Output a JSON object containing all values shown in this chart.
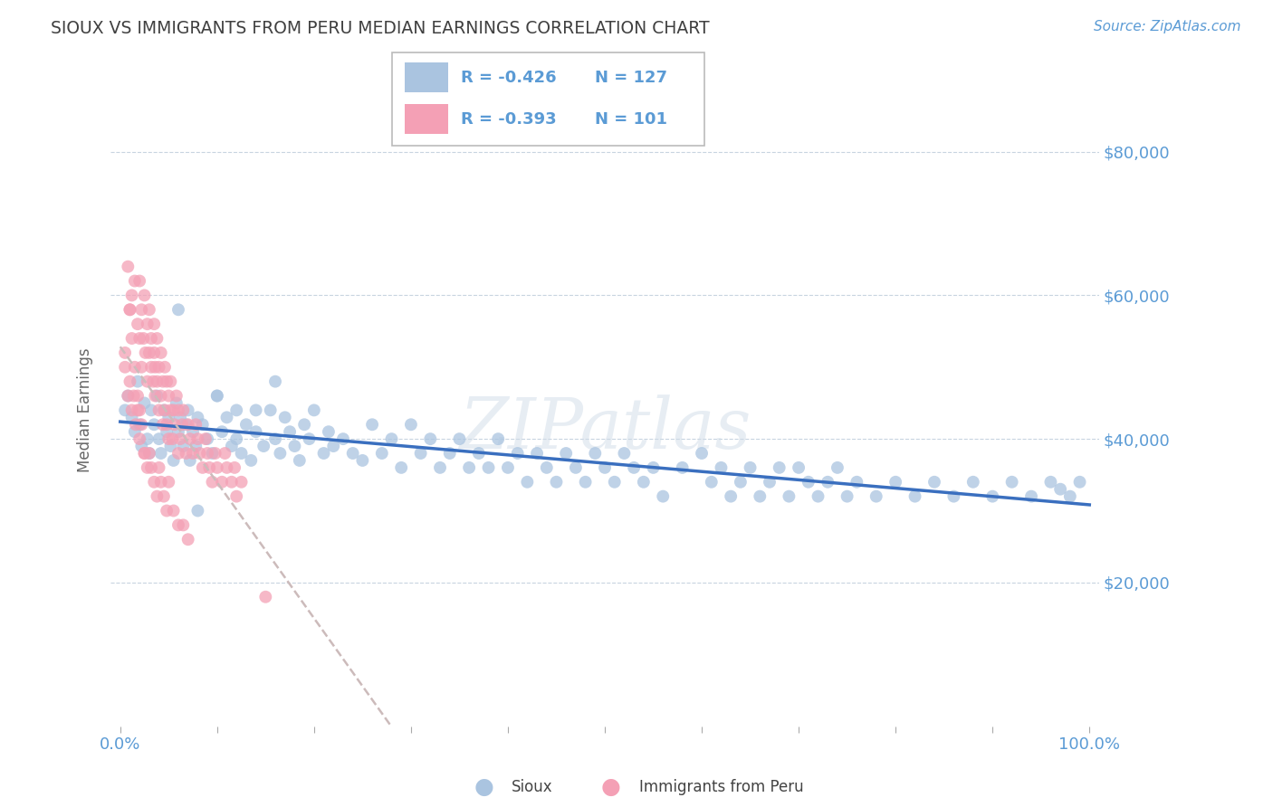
{
  "title": "SIOUX VS IMMIGRANTS FROM PERU MEDIAN EARNINGS CORRELATION CHART",
  "source_text": "Source: ZipAtlas.com",
  "ylabel": "Median Earnings",
  "xlim": [
    -0.01,
    1.01
  ],
  "ylim": [
    0,
    88000
  ],
  "yticks": [
    20000,
    40000,
    60000,
    80000
  ],
  "ytick_labels": [
    "$20,000",
    "$40,000",
    "$60,000",
    "$80,000"
  ],
  "xtick_labels": [
    "0.0%",
    "",
    "",
    "",
    "",
    "",
    "",
    "",
    "",
    "",
    "100.0%"
  ],
  "sioux_color": "#aac4e0",
  "peru_color": "#f4a0b5",
  "trendline_sioux_color": "#3a6fbf",
  "trendline_peru_color": "#ccbbbb",
  "legend_R_sioux": "-0.426",
  "legend_N_sioux": "127",
  "legend_R_peru": "-0.393",
  "legend_N_peru": "101",
  "title_color": "#404040",
  "axis_color": "#5b9bd5",
  "watermark": "ZIPatlas",
  "sioux_x": [
    0.005,
    0.008,
    0.012,
    0.015,
    0.018,
    0.02,
    0.022,
    0.025,
    0.028,
    0.03,
    0.032,
    0.035,
    0.038,
    0.04,
    0.042,
    0.045,
    0.048,
    0.05,
    0.052,
    0.055,
    0.058,
    0.06,
    0.062,
    0.065,
    0.068,
    0.07,
    0.072,
    0.075,
    0.078,
    0.08,
    0.085,
    0.09,
    0.095,
    0.1,
    0.105,
    0.11,
    0.115,
    0.12,
    0.125,
    0.13,
    0.135,
    0.14,
    0.148,
    0.155,
    0.16,
    0.165,
    0.17,
    0.175,
    0.18,
    0.185,
    0.19,
    0.195,
    0.2,
    0.21,
    0.215,
    0.22,
    0.23,
    0.24,
    0.25,
    0.26,
    0.27,
    0.28,
    0.29,
    0.3,
    0.31,
    0.32,
    0.33,
    0.34,
    0.35,
    0.36,
    0.37,
    0.38,
    0.39,
    0.4,
    0.41,
    0.42,
    0.43,
    0.44,
    0.45,
    0.46,
    0.47,
    0.48,
    0.49,
    0.5,
    0.51,
    0.52,
    0.53,
    0.54,
    0.55,
    0.56,
    0.58,
    0.6,
    0.61,
    0.62,
    0.63,
    0.64,
    0.65,
    0.66,
    0.67,
    0.68,
    0.69,
    0.7,
    0.71,
    0.72,
    0.73,
    0.74,
    0.75,
    0.76,
    0.78,
    0.8,
    0.82,
    0.84,
    0.86,
    0.88,
    0.9,
    0.92,
    0.94,
    0.96,
    0.97,
    0.98,
    0.99,
    0.06,
    0.08,
    0.1,
    0.12,
    0.14,
    0.16
  ],
  "sioux_y": [
    44000,
    46000,
    43000,
    41000,
    48000,
    42000,
    39000,
    45000,
    40000,
    38000,
    44000,
    42000,
    46000,
    40000,
    38000,
    44000,
    41000,
    43000,
    39000,
    37000,
    45000,
    41000,
    43000,
    39000,
    42000,
    44000,
    37000,
    41000,
    39000,
    43000,
    42000,
    40000,
    38000,
    46000,
    41000,
    43000,
    39000,
    40000,
    38000,
    42000,
    37000,
    41000,
    39000,
    44000,
    40000,
    38000,
    43000,
    41000,
    39000,
    37000,
    42000,
    40000,
    44000,
    38000,
    41000,
    39000,
    40000,
    38000,
    37000,
    42000,
    38000,
    40000,
    36000,
    42000,
    38000,
    40000,
    36000,
    38000,
    40000,
    36000,
    38000,
    36000,
    40000,
    36000,
    38000,
    34000,
    38000,
    36000,
    34000,
    38000,
    36000,
    34000,
    38000,
    36000,
    34000,
    38000,
    36000,
    34000,
    36000,
    32000,
    36000,
    38000,
    34000,
    36000,
    32000,
    34000,
    36000,
    32000,
    34000,
    36000,
    32000,
    36000,
    34000,
    32000,
    34000,
    36000,
    32000,
    34000,
    32000,
    34000,
    32000,
    34000,
    32000,
    34000,
    32000,
    34000,
    32000,
    34000,
    33000,
    32000,
    34000,
    58000,
    30000,
    46000,
    44000,
    44000,
    48000
  ],
  "peru_x": [
    0.005,
    0.008,
    0.01,
    0.012,
    0.015,
    0.018,
    0.02,
    0.02,
    0.022,
    0.022,
    0.024,
    0.025,
    0.026,
    0.028,
    0.028,
    0.03,
    0.03,
    0.032,
    0.032,
    0.034,
    0.035,
    0.035,
    0.036,
    0.036,
    0.038,
    0.038,
    0.04,
    0.04,
    0.042,
    0.042,
    0.044,
    0.044,
    0.046,
    0.046,
    0.048,
    0.048,
    0.05,
    0.05,
    0.052,
    0.052,
    0.054,
    0.055,
    0.056,
    0.058,
    0.06,
    0.06,
    0.062,
    0.064,
    0.065,
    0.068,
    0.07,
    0.072,
    0.075,
    0.078,
    0.08,
    0.082,
    0.085,
    0.088,
    0.09,
    0.092,
    0.095,
    0.098,
    0.1,
    0.105,
    0.108,
    0.11,
    0.115,
    0.118,
    0.12,
    0.125,
    0.005,
    0.008,
    0.01,
    0.012,
    0.014,
    0.016,
    0.018,
    0.02,
    0.022,
    0.025,
    0.028,
    0.03,
    0.032,
    0.035,
    0.038,
    0.04,
    0.042,
    0.045,
    0.048,
    0.05,
    0.055,
    0.06,
    0.065,
    0.07,
    0.01,
    0.012,
    0.015,
    0.018,
    0.02,
    0.025,
    0.15
  ],
  "peru_y": [
    52000,
    64000,
    58000,
    60000,
    62000,
    56000,
    54000,
    62000,
    58000,
    50000,
    54000,
    60000,
    52000,
    56000,
    48000,
    52000,
    58000,
    50000,
    54000,
    48000,
    52000,
    56000,
    46000,
    50000,
    48000,
    54000,
    44000,
    50000,
    46000,
    52000,
    42000,
    48000,
    44000,
    50000,
    42000,
    48000,
    40000,
    46000,
    44000,
    48000,
    40000,
    44000,
    42000,
    46000,
    38000,
    44000,
    40000,
    42000,
    44000,
    38000,
    42000,
    40000,
    38000,
    42000,
    40000,
    38000,
    36000,
    40000,
    38000,
    36000,
    34000,
    38000,
    36000,
    34000,
    38000,
    36000,
    34000,
    36000,
    32000,
    34000,
    50000,
    46000,
    48000,
    44000,
    46000,
    42000,
    44000,
    40000,
    42000,
    38000,
    36000,
    38000,
    36000,
    34000,
    32000,
    36000,
    34000,
    32000,
    30000,
    34000,
    30000,
    28000,
    28000,
    26000,
    58000,
    54000,
    50000,
    46000,
    44000,
    38000,
    18000
  ]
}
